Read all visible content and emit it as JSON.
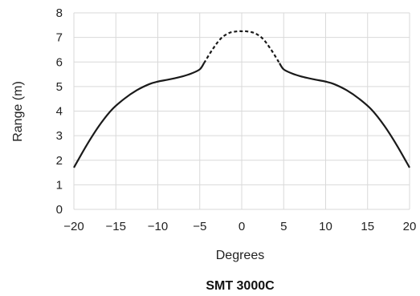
{
  "chart_data": {
    "type": "line",
    "title": "SMT 3000C",
    "xlabel": "Degrees",
    "ylabel": "Range (m)",
    "xlim": [
      -20,
      20
    ],
    "ylim": [
      0,
      8
    ],
    "x_ticks": [
      -20,
      -15,
      -10,
      -5,
      0,
      5,
      10,
      15,
      20
    ],
    "y_ticks": [
      0,
      1,
      2,
      3,
      4,
      5,
      6,
      7,
      8
    ],
    "x_tick_labels": [
      "−20",
      "−15",
      "−10",
      "−5",
      "0",
      "5",
      "10",
      "15",
      "20"
    ],
    "y_tick_labels": [
      "0",
      "1",
      "2",
      "3",
      "4",
      "5",
      "6",
      "7",
      "8"
    ],
    "grid": true,
    "colors": {
      "line": "#1a1a1a",
      "grid": "#d9d9d9"
    },
    "series": [
      {
        "style": "solid",
        "x": [
          -20,
          -18.5,
          -17,
          -15.5,
          -14,
          -12.5,
          -11,
          -10,
          -8.5,
          -7,
          -6,
          -5,
          -4.5
        ],
        "y": [
          1.7,
          2.6,
          3.4,
          4.05,
          4.5,
          4.85,
          5.1,
          5.2,
          5.3,
          5.42,
          5.53,
          5.7,
          5.95
        ]
      },
      {
        "style": "dashed",
        "x": [
          -4.5,
          -3.5,
          -2.5,
          -1.5,
          -0.5,
          0,
          0.5,
          1.5,
          2.5,
          3.5,
          4.5
        ],
        "y": [
          5.95,
          6.5,
          6.95,
          7.18,
          7.25,
          7.25,
          7.25,
          7.18,
          6.95,
          6.5,
          5.95
        ]
      },
      {
        "style": "solid",
        "x": [
          4.5,
          5,
          6,
          7,
          8.5,
          10,
          11,
          12.5,
          14,
          15.5,
          17,
          18.5,
          20
        ],
        "y": [
          5.95,
          5.7,
          5.53,
          5.42,
          5.3,
          5.2,
          5.1,
          4.85,
          4.5,
          4.05,
          3.4,
          2.6,
          1.7
        ]
      }
    ]
  }
}
